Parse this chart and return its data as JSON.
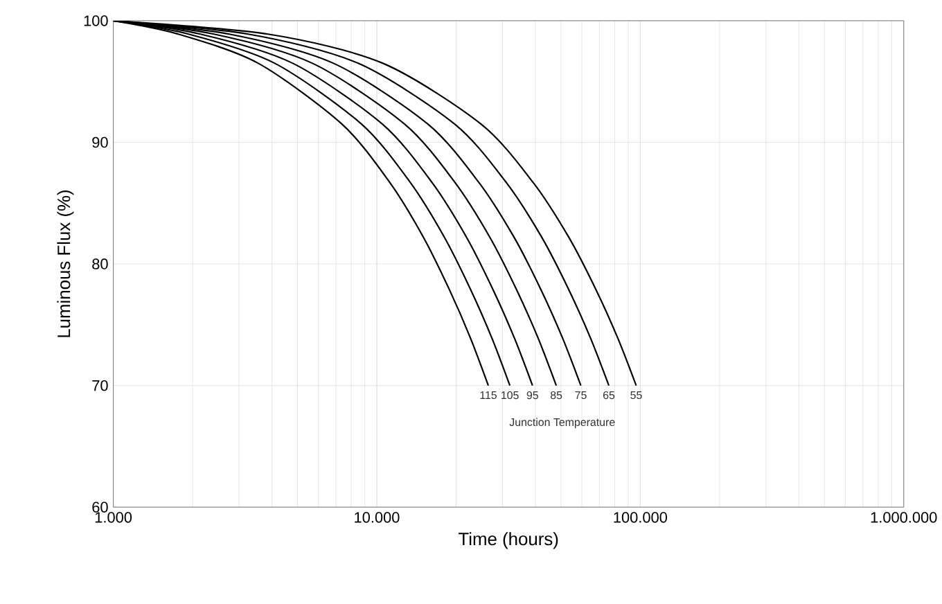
{
  "chart_data": {
    "type": "line",
    "xlabel": "Time (hours)",
    "ylabel": "Luminous Flux (%)",
    "log": "x",
    "grid": true,
    "line_style": "solid",
    "xlim": [
      1000,
      1000000
    ],
    "ylim": [
      60,
      100
    ],
    "xticks": [
      {
        "value": 1000,
        "label": "1.000"
      },
      {
        "value": 10000,
        "label": "10.000"
      },
      {
        "value": 100000,
        "label": "100.000"
      },
      {
        "value": 1000000,
        "label": "1.000.000"
      }
    ],
    "yticks": [
      60,
      70,
      80,
      90,
      100
    ],
    "annotations": [
      "Junction Temperature"
    ],
    "series": [
      {
        "name": "115",
        "color": "#000000",
        "x": [
          1000,
          1765,
          3550,
          7375,
          11200,
          15025,
          18850,
          22675,
          26500
        ],
        "values": [
          100,
          98.9,
          96.5,
          91.5,
          86.7,
          82.2,
          77.9,
          73.9,
          70
        ]
      },
      {
        "name": "105",
        "color": "#000000",
        "x": [
          1000,
          1930,
          4100,
          8750,
          13400,
          18050,
          22700,
          27350,
          32000
        ],
        "values": [
          100,
          98.9,
          96.5,
          91.5,
          86.7,
          82.2,
          77.9,
          73.9,
          70
        ]
      },
      {
        "name": "95",
        "color": "#000000",
        "x": [
          1000,
          2140,
          4800,
          10500,
          16200,
          21900,
          27600,
          33300,
          39000
        ],
        "values": [
          100,
          98.9,
          96.5,
          91.5,
          86.7,
          82.2,
          77.9,
          73.9,
          70
        ]
      },
      {
        "name": "85",
        "color": "#000000",
        "x": [
          1000,
          2410,
          5700,
          12750,
          19800,
          26850,
          33900,
          40950,
          48000
        ],
        "values": [
          100,
          98.9,
          96.5,
          91.5,
          86.7,
          82.2,
          77.9,
          73.9,
          70
        ]
      },
      {
        "name": "75",
        "color": "#000000",
        "x": [
          1000,
          2755,
          6850,
          15625,
          24400,
          33175,
          41950,
          50725,
          59500
        ],
        "values": [
          100,
          98.9,
          96.5,
          91.5,
          86.7,
          82.2,
          77.9,
          73.9,
          70
        ]
      },
      {
        "name": "65",
        "color": "#000000",
        "x": [
          1000,
          3250,
          8500,
          19750,
          31000,
          42250,
          53500,
          64750,
          76000
        ],
        "values": [
          100,
          98.9,
          96.5,
          91.5,
          86.7,
          82.2,
          77.9,
          73.9,
          70
        ]
      },
      {
        "name": "55",
        "color": "#000000",
        "x": [
          1000,
          3865,
          10550,
          24875,
          39200,
          53525,
          67850,
          82175,
          96500
        ],
        "values": [
          100,
          98.9,
          96.5,
          91.5,
          86.7,
          82.2,
          77.9,
          73.9,
          70
        ]
      }
    ]
  }
}
